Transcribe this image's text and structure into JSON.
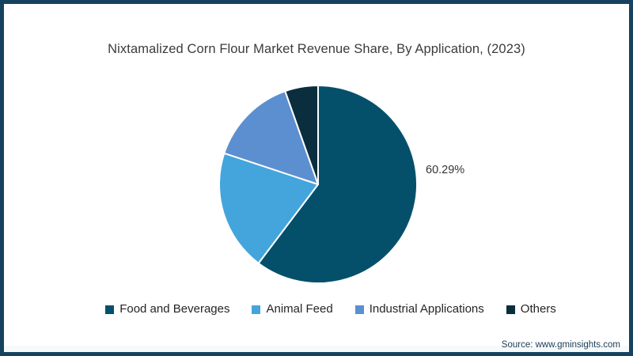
{
  "frame": {
    "border_color": "#16425F",
    "background_color": "#FFFFFF"
  },
  "title": "Nixtamalized Corn Flour Market Revenue Share, By Application, (2023)",
  "source_text": "Source: www.gminsights.com",
  "chart_data": {
    "type": "pie",
    "title": "Nixtamalized Corn Flour Market Revenue Share, By Application, (2023)",
    "categories": [
      "Food and Beverages",
      "Animal Feed",
      "Industrial Applications",
      "Others"
    ],
    "values": [
      60.29,
      19.8,
      14.5,
      5.41
    ],
    "unit": "%",
    "colors": [
      "#04506B",
      "#44A5DC",
      "#5C8FD0",
      "#0B2E3E"
    ],
    "start_angle_deg": 0,
    "direction": "clockwise",
    "slice_stroke_color": "#FFFFFF",
    "legend_position": "bottom",
    "annotation": {
      "text": "60.29%",
      "labeled_slice": "Food and Beverages"
    }
  },
  "legend": {
    "items": [
      {
        "label": "Food and Beverages",
        "color": "#04506B"
      },
      {
        "label": "Animal Feed",
        "color": "#44A5DC"
      },
      {
        "label": "Industrial Applications",
        "color": "#5C8FD0"
      },
      {
        "label": "Others",
        "color": "#0B2E3E"
      }
    ]
  }
}
